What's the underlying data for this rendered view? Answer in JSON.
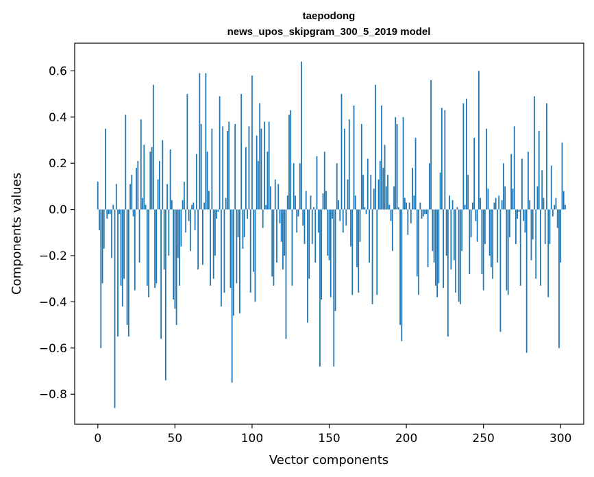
{
  "chart_data": {
    "type": "bar",
    "title_lines": [
      "taepodong",
      "news_upos_skipgram_300_5_2019 model"
    ],
    "xlabel": "Vector components",
    "ylabel": "Components values",
    "xlim": [
      -15,
      315
    ],
    "ylim": [
      -0.93,
      0.72
    ],
    "xticks": [
      0,
      50,
      100,
      150,
      200,
      250,
      300
    ],
    "yticks": [
      -0.8,
      -0.6,
      -0.4,
      -0.2,
      0.0,
      0.2,
      0.4,
      0.6
    ],
    "ytick_labels": [
      "−0.8",
      "−0.6",
      "−0.4",
      "−0.2",
      "0.0",
      "0.2",
      "0.4",
      "0.6"
    ],
    "xtick_labels": [
      "0",
      "50",
      "100",
      "150",
      "200",
      "250",
      "300"
    ],
    "grid": false,
    "bar_color": "#1f77b4",
    "values": [
      0.12,
      -0.09,
      -0.6,
      -0.32,
      -0.17,
      0.35,
      -0.04,
      -0.02,
      -0.02,
      -0.21,
      0.02,
      -0.86,
      0.11,
      -0.55,
      -0.02,
      -0.33,
      -0.42,
      -0.3,
      0.41,
      -0.5,
      -0.55,
      0.11,
      0.15,
      -0.03,
      -0.35,
      0.18,
      0.21,
      -0.23,
      0.39,
      0.05,
      0.28,
      0.02,
      -0.33,
      -0.38,
      0.25,
      0.27,
      0.54,
      -0.34,
      -0.32,
      0.13,
      0.21,
      -0.56,
      0.3,
      -0.26,
      -0.74,
      0.11,
      -0.2,
      0.26,
      0.04,
      -0.39,
      -0.43,
      -0.5,
      -0.21,
      -0.33,
      -0.16,
      0.04,
      0.12,
      -0.1,
      0.5,
      -0.05,
      -0.18,
      0.02,
      0.03,
      -0.09,
      0.24,
      -0.26,
      0.59,
      0.37,
      -0.24,
      0.03,
      0.59,
      0.25,
      0.08,
      -0.33,
      0.35,
      -0.3,
      -0.2,
      -0.04,
      -0.01,
      0.49,
      -0.42,
      0.36,
      -0.36,
      0.05,
      0.34,
      0.38,
      -0.34,
      -0.75,
      -0.46,
      0.37,
      -0.32,
      -0.12,
      -0.45,
      0.5,
      -0.17,
      -0.12,
      0.27,
      -0.04,
      0.36,
      -0.36,
      0.58,
      -0.27,
      -0.4,
      0.32,
      0.21,
      0.46,
      0.35,
      -0.08,
      0.38,
      0.02,
      0.25,
      0.38,
      0.1,
      -0.29,
      -0.33,
      0.13,
      -0.23,
      0.11,
      -0.06,
      -0.14,
      -0.26,
      -0.2,
      -0.56,
      0.06,
      0.41,
      0.43,
      -0.33,
      0.2,
      0.06,
      -0.1,
      -0.03,
      0.2,
      0.64,
      -0.07,
      -0.15,
      0.08,
      -0.49,
      -0.3,
      0.06,
      -0.15,
      0.01,
      -0.23,
      0.23,
      -0.1,
      -0.68,
      -0.39,
      0.07,
      0.25,
      0.08,
      -0.2,
      -0.22,
      -0.38,
      -0.04,
      -0.68,
      -0.44,
      0.2,
      0.04,
      -0.05,
      0.5,
      -0.1,
      0.35,
      -0.07,
      0.13,
      0.39,
      -0.16,
      -0.37,
      0.45,
      0.06,
      -0.25,
      -0.36,
      -0.14,
      0.37,
      0.15,
      0.01,
      -0.02,
      0.22,
      -0.23,
      0.15,
      -0.41,
      0.09,
      0.54,
      -0.37,
      0.13,
      0.21,
      0.45,
      0.18,
      0.28,
      0.1,
      0.15,
      0.02,
      -0.05,
      -0.18,
      0.1,
      0.4,
      0.37,
      0.01,
      -0.5,
      -0.57,
      0.4,
      0.05,
      0.03,
      -0.11,
      0.03,
      -0.06,
      0.18,
      0.06,
      0.31,
      -0.29,
      -0.37,
      0.03,
      -0.04,
      -0.03,
      -0.02,
      -0.02,
      -0.25,
      0.2,
      0.56,
      -0.18,
      -0.23,
      -0.33,
      -0.38,
      -0.32,
      0.16,
      0.44,
      -0.34,
      0.43,
      -0.2,
      -0.55,
      0.06,
      -0.26,
      0.04,
      -0.22,
      -0.36,
      0.01,
      -0.4,
      -0.41,
      -0.18,
      0.46,
      0.02,
      0.48,
      0.15,
      -0.28,
      -0.12,
      0.03,
      0.31,
      -0.05,
      -0.14,
      0.6,
      0.05,
      -0.28,
      -0.35,
      -0.15,
      0.35,
      0.09,
      -0.2,
      -0.25,
      -0.3,
      0.03,
      0.05,
      -0.23,
      0.06,
      -0.53,
      0.04,
      0.2,
      0.1,
      -0.35,
      -0.37,
      -0.12,
      0.24,
      0.09,
      0.36,
      -0.15,
      -0.04,
      -0.01,
      -0.33,
      0.22,
      -0.05,
      -0.1,
      -0.62,
      0.25,
      0.04,
      -0.22,
      -0.13,
      0.49,
      -0.3,
      0.1,
      0.34,
      -0.33,
      0.17,
      0.05,
      -0.15,
      0.46,
      -0.38,
      -0.15,
      0.19,
      -0.03,
      0.02,
      0.05,
      -0.08,
      -0.6,
      -0.23,
      0.29,
      0.08,
      0.02
    ]
  }
}
